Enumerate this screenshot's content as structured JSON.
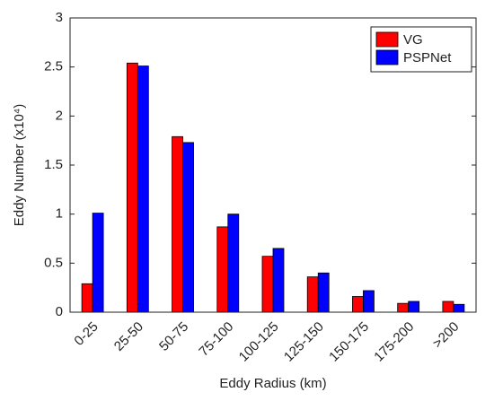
{
  "chart_data": {
    "type": "bar",
    "x_label": "Eddy Radius (km)",
    "y_label": "Eddy Number (x10⁴)",
    "categories": [
      "0-25",
      "25-50",
      "50-75",
      "75-100",
      "100-125",
      "125-150",
      "150-175",
      "175-200",
      ">200"
    ],
    "series": [
      {
        "name": "VG",
        "color": "#ff0000",
        "values": [
          0.29,
          2.54,
          1.79,
          0.87,
          0.57,
          0.36,
          0.16,
          0.09,
          0.11
        ]
      },
      {
        "name": "PSPNet",
        "color": "#0000ff",
        "values": [
          1.01,
          2.51,
          1.73,
          1.0,
          0.65,
          0.4,
          0.22,
          0.11,
          0.08
        ]
      }
    ],
    "ylim": [
      0,
      3
    ],
    "yticks": [
      0,
      0.5,
      1,
      1.5,
      2,
      2.5,
      3
    ],
    "legend": "top-right"
  }
}
